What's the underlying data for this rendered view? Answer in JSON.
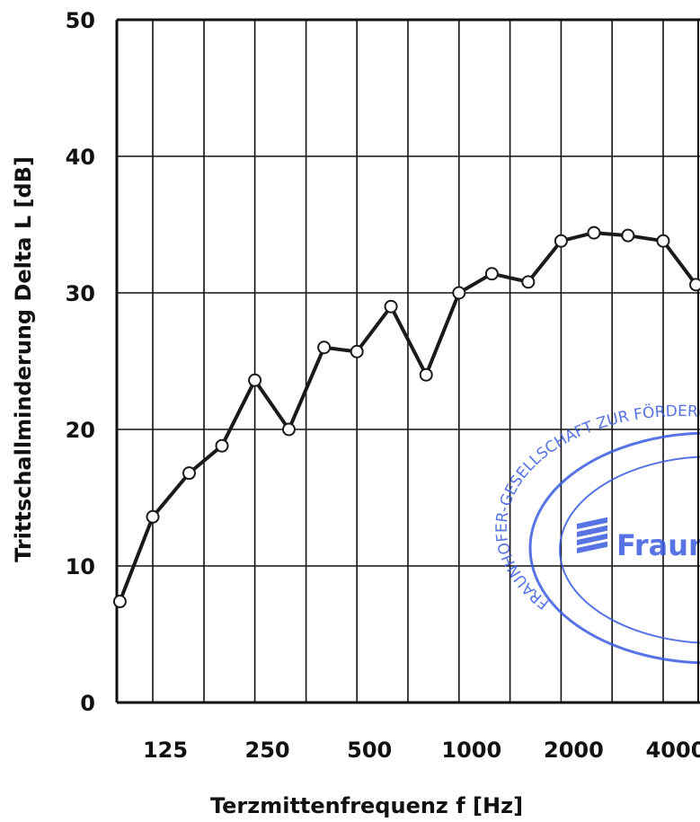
{
  "chart_data": {
    "type": "line",
    "title": "",
    "xlabel": "Terzmittenfrequenz f [Hz]",
    "ylabel": "Trittschallminderung Delta L [dB]",
    "ylim": [
      0,
      50
    ],
    "yticks": [
      0,
      10,
      20,
      30,
      40,
      50
    ],
    "x_scale": "log (third-octave bands)",
    "xticks": [
      125,
      250,
      500,
      1000,
      2000,
      4000
    ],
    "xtick_labels": [
      "125",
      "250",
      "500",
      "1000",
      "2000",
      "4000"
    ],
    "grid": true,
    "legend": "none",
    "series": [
      {
        "x": [
          100,
          125,
          160,
          200,
          250,
          315,
          400,
          500,
          630,
          800,
          1000,
          1250,
          1600,
          2000,
          2500,
          3150,
          4000,
          5000
        ],
        "values": [
          7.4,
          13.6,
          16.8,
          18.8,
          23.6,
          20.0,
          26.0,
          25.7,
          29.0,
          24.0,
          30.0,
          31.4,
          30.8,
          33.8,
          34.4,
          34.2,
          33.8,
          30.6
        ]
      }
    ],
    "colors": {
      "line": "#1a1a1a",
      "marker_fill": "#ffffff",
      "grid": "#111111",
      "stamp": "#3a5be0"
    },
    "stamp": {
      "arc_text": "FRAUNHOFER-GESELLSCHAFT ZUR FÖRDERUNG",
      "brand": "Fraunhofer"
    }
  }
}
